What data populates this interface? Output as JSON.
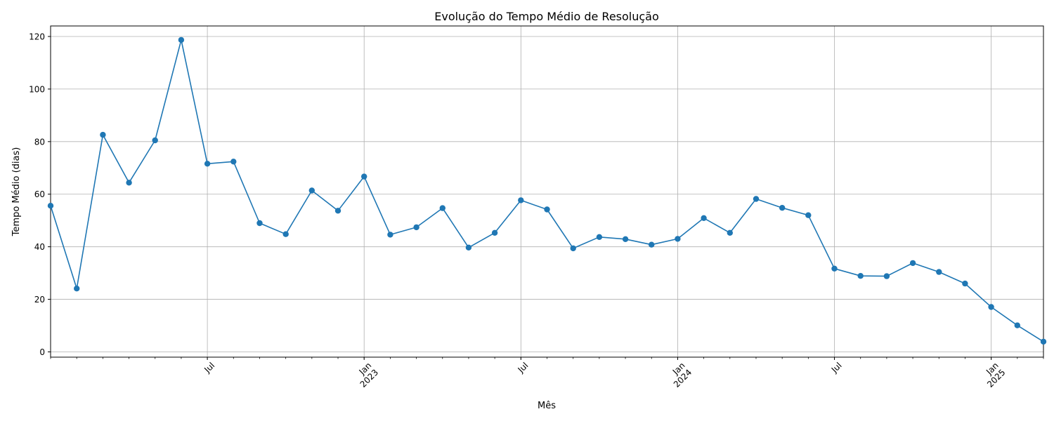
{
  "chart_data": {
    "type": "line",
    "title": "Evolução do Tempo Médio de Resolução",
    "xlabel": "Mês",
    "ylabel": "Tempo Médio (dias)",
    "ylim": [
      -2,
      124
    ],
    "yticks": [
      0,
      20,
      40,
      60,
      80,
      100,
      120
    ],
    "xlim": [
      "2022-01",
      "2025-03"
    ],
    "x_major_ticks": [
      {
        "month": "2022-07",
        "label": "Jul",
        "year": ""
      },
      {
        "month": "2023-01",
        "label": "Jan",
        "year": "2023"
      },
      {
        "month": "2023-07",
        "label": "Jul",
        "year": ""
      },
      {
        "month": "2024-01",
        "label": "Jan",
        "year": "2024"
      },
      {
        "month": "2024-07",
        "label": "Jul",
        "year": ""
      },
      {
        "month": "2025-01",
        "label": "Jan",
        "year": "2025"
      }
    ],
    "grid": true,
    "color": "#1f77b4",
    "grid_color": "#b0b0b0",
    "marker": "circle",
    "x": [
      "2022-01",
      "2022-02",
      "2022-03",
      "2022-04",
      "2022-05",
      "2022-06",
      "2022-07",
      "2022-08",
      "2022-09",
      "2022-10",
      "2022-11",
      "2022-12",
      "2023-01",
      "2023-02",
      "2023-03",
      "2023-04",
      "2023-05",
      "2023-06",
      "2023-07",
      "2023-08",
      "2023-09",
      "2023-10",
      "2023-11",
      "2023-12",
      "2024-01",
      "2024-02",
      "2024-03",
      "2024-04",
      "2024-05",
      "2024-06",
      "2024-07",
      "2024-08",
      "2024-09",
      "2024-10",
      "2024-11",
      "2024-12",
      "2025-01",
      "2025-02",
      "2025-03"
    ],
    "values": [
      55.6,
      24.1,
      82.6,
      64.4,
      80.5,
      118.7,
      71.6,
      72.4,
      49.0,
      44.8,
      61.4,
      53.7,
      66.7,
      44.6,
      47.4,
      54.7,
      39.7,
      45.3,
      57.7,
      54.2,
      39.4,
      43.7,
      42.9,
      40.8,
      43.0,
      50.9,
      45.3,
      58.2,
      54.8,
      52.0,
      31.7,
      28.9,
      28.8,
      33.8,
      30.4,
      26.0,
      17.1,
      10.1,
      3.9
    ]
  }
}
